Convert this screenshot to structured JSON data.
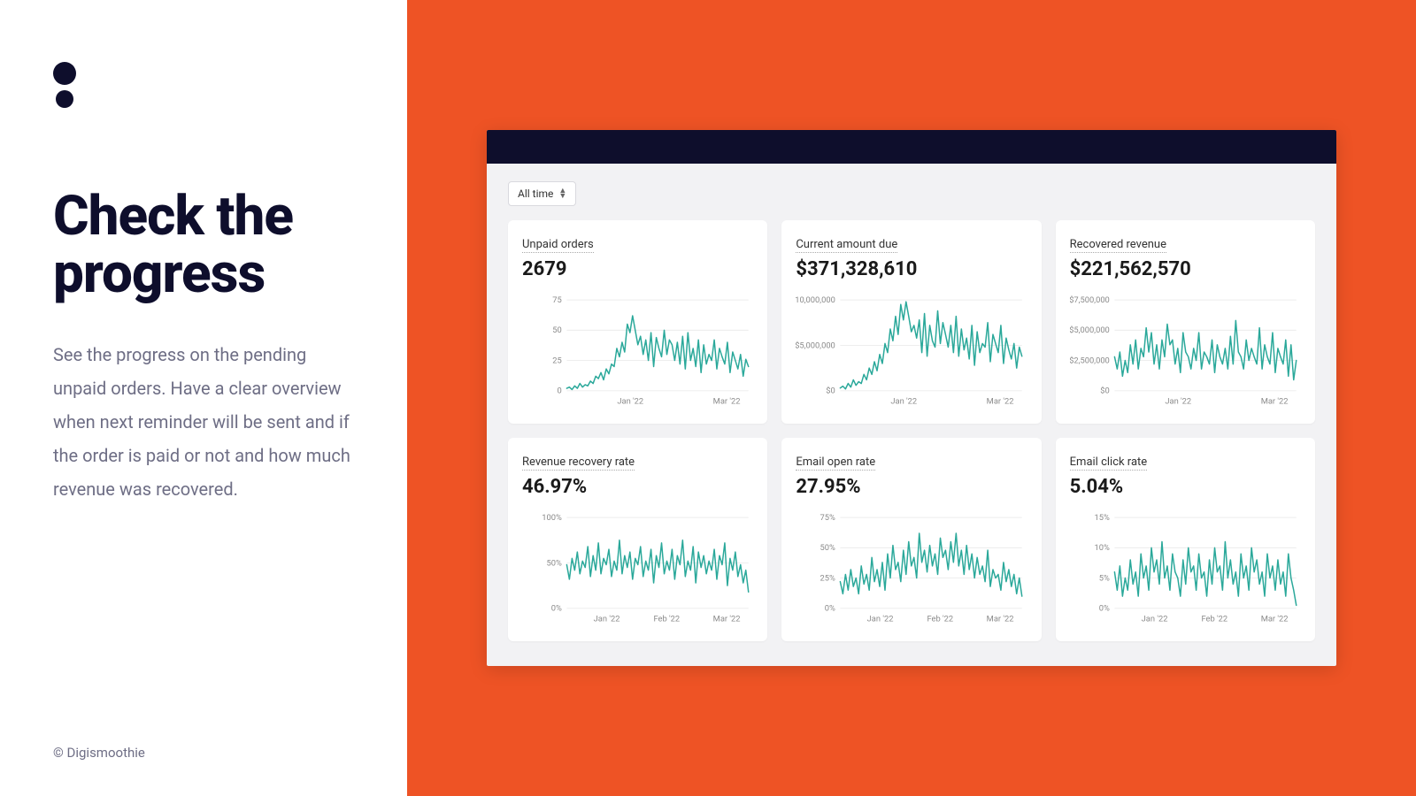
{
  "colors": {
    "right_bg": "#ee5325",
    "dark": "#0e0e2c",
    "line": "#2aa89a",
    "grid": "#ececec",
    "axis_text": "#8a8a8a",
    "body_text": "#6e6e85"
  },
  "left": {
    "heading": "Check the progress",
    "description": "See the progress on the pending unpaid orders. Have a clear overview when next reminder will be sent and if the order is paid or not and how much revenue was recovered.",
    "copyright": "© Digismoothie"
  },
  "dashboard": {
    "range_label": "All time",
    "cards": [
      {
        "title": "Unpaid orders",
        "value": "2679",
        "ymin": 0,
        "ymax": 75,
        "y_ticks": [
          0,
          25,
          50,
          75
        ],
        "y_tick_labels": [
          "0",
          "25",
          "50",
          "75"
        ],
        "x_tick_labels": [
          "Jan '22",
          "Mar '22"
        ],
        "x_tick_positions": [
          0.35,
          0.88
        ],
        "series": [
          2,
          3,
          1,
          4,
          2,
          6,
          3,
          5,
          4,
          8,
          6,
          12,
          10,
          15,
          9,
          18,
          14,
          22,
          20,
          35,
          28,
          40,
          32,
          55,
          48,
          62,
          50,
          38,
          45,
          30,
          42,
          25,
          48,
          20,
          44,
          35,
          28,
          50,
          30,
          42,
          38,
          25,
          40,
          22,
          45,
          18,
          48,
          25,
          35,
          20,
          42,
          15,
          38,
          22,
          30,
          25,
          42,
          18,
          35,
          28,
          22,
          40,
          15,
          32,
          25,
          18,
          30,
          12,
          26,
          20
        ]
      },
      {
        "title": "Current amount due",
        "value": "$371,328,610",
        "ymin": 0,
        "ymax": 10000000,
        "y_ticks": [
          0,
          5000000,
          10000000
        ],
        "y_tick_labels": [
          "$0",
          "$5,000,000",
          "$10,000,000"
        ],
        "x_tick_labels": [
          "Jan '22",
          "Mar '22"
        ],
        "x_tick_positions": [
          0.35,
          0.88
        ],
        "series": [
          300000,
          500000,
          200000,
          800000,
          400000,
          1200000,
          600000,
          1000000,
          800000,
          1800000,
          1200000,
          2500000,
          1800000,
          3200000,
          2200000,
          4000000,
          3000000,
          5200000,
          4200000,
          6800000,
          5500000,
          8200000,
          6200000,
          9500000,
          7800000,
          9800000,
          8200000,
          6500000,
          7200000,
          5800000,
          7800000,
          4200000,
          8500000,
          3800000,
          7200000,
          5500000,
          4800000,
          8800000,
          5200000,
          7500000,
          6200000,
          4800000,
          7200000,
          4200000,
          8200000,
          3800000,
          6800000,
          4500000,
          5800000,
          3500000,
          7200000,
          2800000,
          6500000,
          4200000,
          5200000,
          4800000,
          7500000,
          3200000,
          6200000,
          5200000,
          4200000,
          7200000,
          3000000,
          5800000,
          4500000,
          3500000,
          5200000,
          2500000,
          4800000,
          3800000
        ]
      },
      {
        "title": "Recovered revenue",
        "value": "$221,562,570",
        "ymin": 0,
        "ymax": 7500000,
        "y_ticks": [
          0,
          2500000,
          5000000,
          7500000
        ],
        "y_tick_labels": [
          "$0",
          "$2,500,000",
          "$5,000,000",
          "$7,500,000"
        ],
        "x_tick_labels": [
          "Jan '22",
          "Mar '22"
        ],
        "x_tick_positions": [
          0.35,
          0.88
        ],
        "series": [
          2800000,
          1800000,
          3200000,
          1200000,
          2500000,
          1500000,
          3800000,
          2200000,
          4200000,
          1800000,
          3500000,
          2800000,
          5200000,
          3200000,
          4800000,
          2200000,
          3800000,
          1800000,
          4200000,
          2800000,
          5500000,
          3800000,
          4200000,
          2200000,
          3500000,
          1500000,
          4800000,
          3200000,
          2800000,
          1800000,
          3500000,
          2500000,
          4800000,
          1800000,
          3200000,
          2800000,
          2200000,
          4200000,
          1500000,
          3800000,
          2800000,
          2200000,
          3500000,
          1800000,
          4500000,
          2200000,
          5800000,
          3200000,
          2800000,
          1800000,
          4200000,
          2500000,
          3500000,
          2800000,
          2200000,
          5200000,
          1800000,
          3800000,
          2800000,
          2200000,
          4800000,
          1500000,
          3500000,
          2800000,
          2200000,
          4200000,
          1200000,
          3800000,
          900000,
          2500000
        ]
      },
      {
        "title": "Revenue recovery rate",
        "value": "46.97%",
        "ymin": 0,
        "ymax": 100,
        "y_ticks": [
          0,
          50,
          100
        ],
        "y_tick_labels": [
          "0%",
          "50%",
          "100%"
        ],
        "x_tick_labels": [
          "Jan '22",
          "Feb '22",
          "Mar '22"
        ],
        "x_tick_positions": [
          0.22,
          0.55,
          0.88
        ],
        "series": [
          48,
          32,
          55,
          42,
          62,
          38,
          52,
          45,
          68,
          35,
          58,
          42,
          72,
          38,
          55,
          48,
          65,
          35,
          52,
          42,
          75,
          38,
          58,
          45,
          62,
          32,
          55,
          48,
          68,
          35,
          52,
          42,
          65,
          28,
          58,
          45,
          72,
          38,
          52,
          42,
          65,
          32,
          58,
          48,
          75,
          35,
          52,
          42,
          68,
          28,
          62,
          45,
          58,
          38,
          52,
          42,
          65,
          32,
          58,
          48,
          72,
          25,
          55,
          42,
          62,
          35,
          48,
          28,
          42,
          18
        ]
      },
      {
        "title": "Email open rate",
        "value": "27.95%",
        "ymin": 0,
        "ymax": 75,
        "y_ticks": [
          0,
          25,
          50,
          75
        ],
        "y_tick_labels": [
          "0%",
          "25%",
          "50%",
          "75%"
        ],
        "x_tick_labels": [
          "Jan '22",
          "Feb '22",
          "Mar '22"
        ],
        "x_tick_positions": [
          0.22,
          0.55,
          0.88
        ],
        "series": [
          22,
          12,
          28,
          15,
          32,
          18,
          25,
          12,
          35,
          20,
          28,
          15,
          42,
          22,
          32,
          18,
          38,
          15,
          45,
          25,
          52,
          32,
          38,
          22,
          48,
          28,
          55,
          35,
          42,
          25,
          62,
          38,
          48,
          30,
          52,
          35,
          45,
          28,
          58,
          42,
          48,
          32,
          55,
          38,
          62,
          35,
          48,
          28,
          52,
          32,
          45,
          25,
          42,
          28,
          35,
          22,
          48,
          18,
          32,
          25,
          28,
          15,
          38,
          22,
          32,
          18,
          28,
          12,
          25,
          10
        ]
      },
      {
        "title": "Email click rate",
        "value": "5.04%",
        "ymin": 0,
        "ymax": 15,
        "y_ticks": [
          0,
          5,
          10,
          15
        ],
        "y_tick_labels": [
          "0%",
          "5%",
          "10%",
          "15%"
        ],
        "x_tick_labels": [
          "Jan '22",
          "Feb '22",
          "Mar '22"
        ],
        "x_tick_positions": [
          0.22,
          0.55,
          0.88
        ],
        "series": [
          6,
          3,
          7,
          2,
          5,
          3,
          8,
          4,
          6,
          2,
          9,
          5,
          7,
          3,
          10,
          6,
          8,
          4,
          11,
          5,
          7,
          3,
          9,
          6,
          5,
          2,
          8,
          4,
          10,
          6,
          7,
          3,
          9,
          5,
          6,
          2,
          8,
          4,
          10,
          6,
          7,
          3,
          11,
          5,
          8,
          4,
          6,
          2,
          9,
          5,
          7,
          3,
          10,
          6,
          8,
          4,
          6,
          2,
          9,
          5,
          7,
          3,
          8,
          4,
          6,
          2,
          9,
          5,
          3,
          0.5
        ]
      }
    ]
  }
}
